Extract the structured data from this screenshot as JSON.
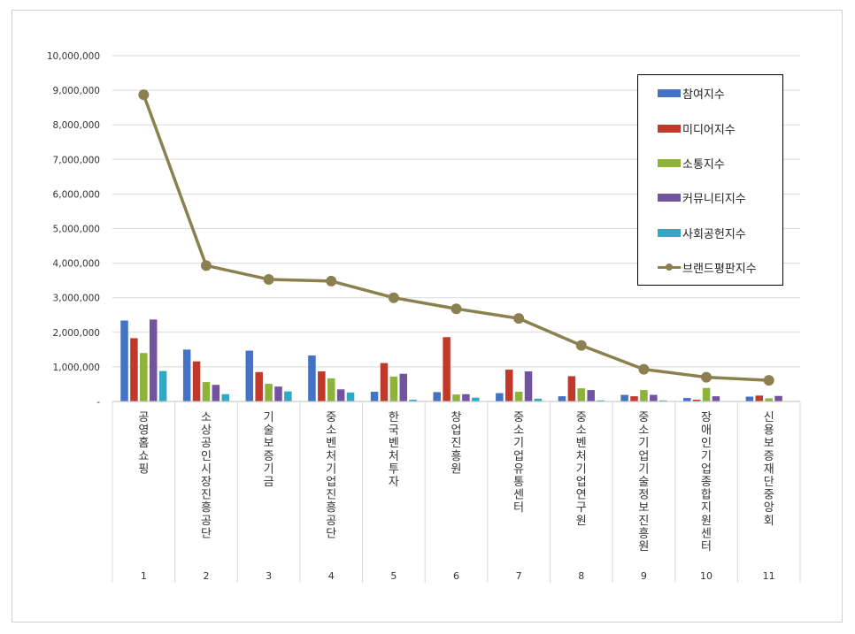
{
  "chart_data": {
    "type": "bar",
    "title": "",
    "xlabel": "",
    "ylabel": "",
    "ylim": [
      0,
      10000000
    ],
    "yticks": [
      "-",
      "1,000,000",
      "2,000,000",
      "3,000,000",
      "4,000,000",
      "5,000,000",
      "6,000,000",
      "7,000,000",
      "8,000,000",
      "9,000,000",
      "10,000,000"
    ],
    "grid": true,
    "legend_position": "top-right",
    "categories": [
      "공영홈쇼핑",
      "소상공인시장진흥공단",
      "기술보증기금",
      "중소벤처기업진흥공단",
      "한국벤처투자",
      "창업진흥원",
      "중소기업유통센터",
      "중소벤처기업연구원",
      "중소기업기술정보진흥원",
      "장애인기업종합지원센터",
      "신용보증재단중앙회"
    ],
    "ranks": [
      "1",
      "2",
      "3",
      "4",
      "5",
      "6",
      "7",
      "8",
      "9",
      "10",
      "11"
    ],
    "series": [
      {
        "name": "참여지수",
        "kind": "bar",
        "color": "#4472c4",
        "values": [
          2340000,
          1500000,
          1470000,
          1330000,
          280000,
          270000,
          240000,
          150000,
          190000,
          100000,
          140000
        ]
      },
      {
        "name": "미디어지수",
        "kind": "bar",
        "color": "#c0392b",
        "values": [
          1830000,
          1160000,
          850000,
          870000,
          1110000,
          1860000,
          920000,
          730000,
          150000,
          50000,
          170000
        ]
      },
      {
        "name": "소통지수",
        "kind": "bar",
        "color": "#8db33a",
        "values": [
          1400000,
          560000,
          510000,
          670000,
          720000,
          200000,
          280000,
          380000,
          330000,
          390000,
          90000
        ]
      },
      {
        "name": "커뮤니티지수",
        "kind": "bar",
        "color": "#7153a0",
        "values": [
          2370000,
          480000,
          430000,
          350000,
          800000,
          210000,
          870000,
          330000,
          190000,
          150000,
          160000
        ]
      },
      {
        "name": "사회공헌지수",
        "kind": "bar",
        "color": "#31a9c4",
        "values": [
          880000,
          210000,
          290000,
          260000,
          50000,
          110000,
          80000,
          30000,
          30000,
          10000,
          10000
        ]
      },
      {
        "name": "브랜드평판지수",
        "kind": "line",
        "color": "#8c8050",
        "values": [
          8870000,
          3930000,
          3530000,
          3480000,
          3000000,
          2680000,
          2400000,
          1620000,
          930000,
          700000,
          610000
        ]
      }
    ]
  }
}
